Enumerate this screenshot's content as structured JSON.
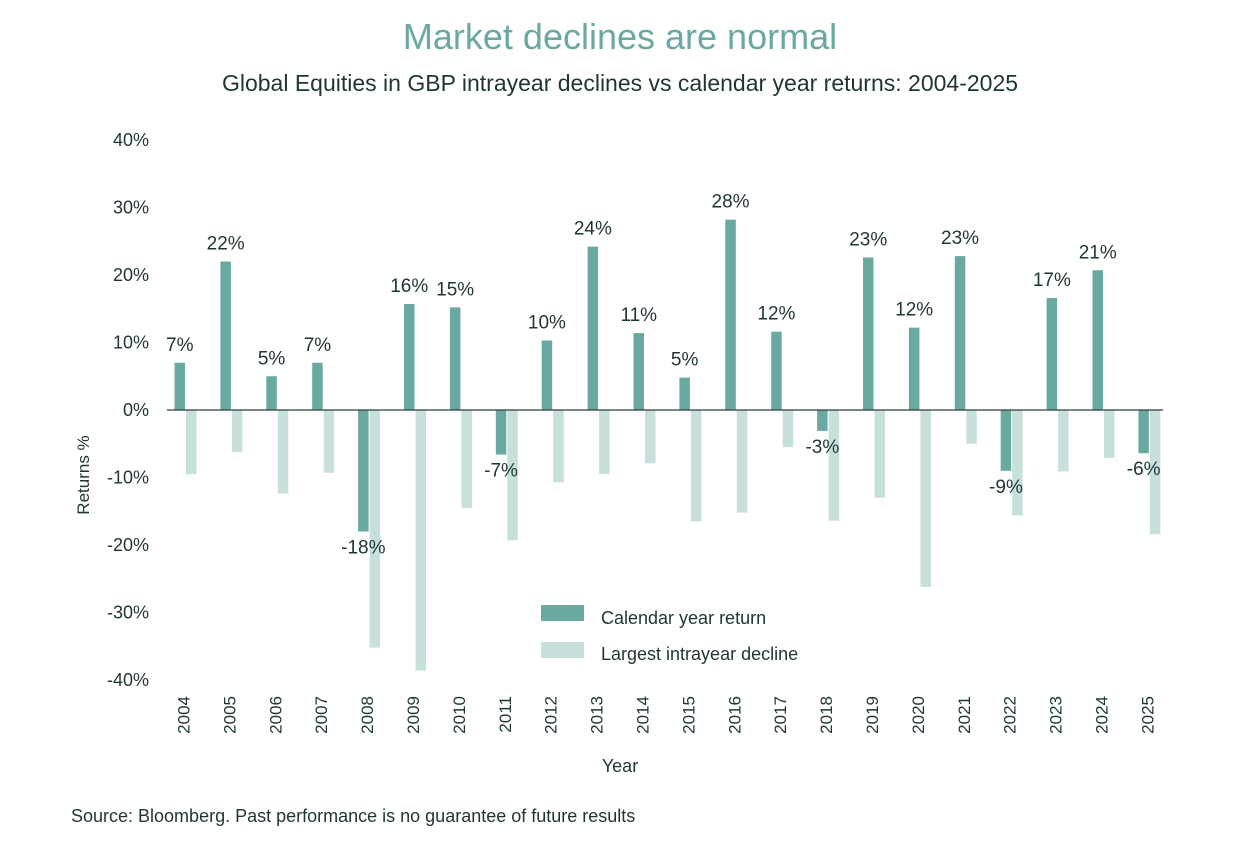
{
  "header": {
    "title": "Market declines are normal",
    "subtitle": "Global Equities in GBP intrayear declines vs calendar year returns: 2004-2025"
  },
  "footer": {
    "source": "Source: Bloomberg. Past performance is no guarantee of future results"
  },
  "colors": {
    "calendar": "#6aa9a1",
    "decline": "#c7e0dc",
    "title": "#6ba8a2",
    "axis": "#2c3e3e"
  },
  "chart_data": {
    "type": "bar",
    "title": "Market declines are normal",
    "subtitle": "Global Equities in GBP intrayear declines vs calendar year returns: 2004-2025",
    "xlabel": "Year",
    "ylabel": "Returns %",
    "ylim": [
      -40,
      40
    ],
    "yticks": [
      "-40%",
      "-30%",
      "-20%",
      "-10%",
      "0%",
      "10%",
      "20%",
      "30%",
      "40%"
    ],
    "categories": [
      "2004",
      "2005",
      "2006",
      "2007",
      "2008",
      "2009",
      "2010",
      "2011",
      "2012",
      "2013",
      "2014",
      "2015",
      "2016",
      "2017",
      "2018",
      "2019",
      "2020",
      "2021",
      "2022",
      "2023",
      "2024",
      "2025"
    ],
    "series": [
      {
        "name": "Calendar year return",
        "values": [
          7,
          22,
          5,
          7,
          -18,
          15.7,
          15.2,
          -6.6,
          10.3,
          24.2,
          11.4,
          4.8,
          28.2,
          11.6,
          -3.1,
          22.6,
          12.2,
          22.8,
          -9,
          16.6,
          20.7,
          -6.4
        ],
        "labels": [
          "7%",
          "22%",
          "5%",
          "7%",
          "-18%",
          "16%",
          "15%",
          "-7%",
          "10%",
          "24%",
          "11%",
          "5%",
          "28%",
          "12%",
          "-3%",
          "23%",
          "12%",
          "23%",
          "-9%",
          "17%",
          "21%",
          "-6%"
        ]
      },
      {
        "name": "Largest intrayear decline",
        "values": [
          -9.5,
          -6.2,
          -12.4,
          -9.3,
          -35.2,
          -38.6,
          -14.5,
          -19.3,
          -10.7,
          -9.5,
          -7.9,
          -16.5,
          -15.2,
          -5.5,
          -16.4,
          -13,
          -26.2,
          -5,
          -15.6,
          -9.1,
          -7.1,
          -18.4
        ]
      }
    ],
    "legend": "center-bottom",
    "grid": false
  }
}
